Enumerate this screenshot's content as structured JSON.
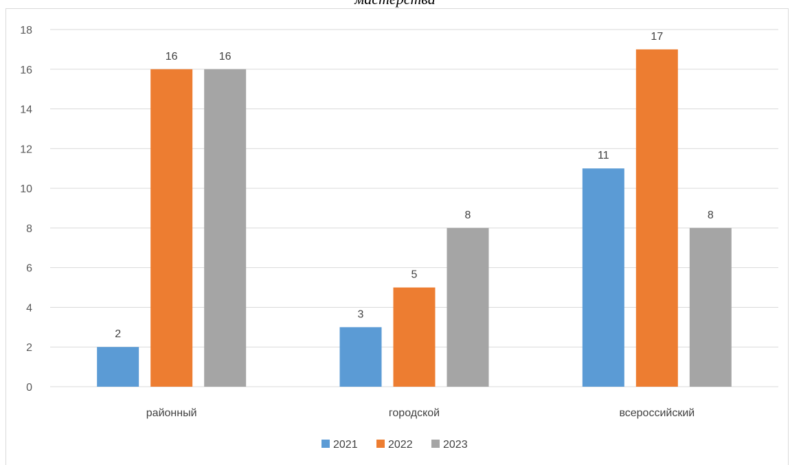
{
  "title": "мастерства",
  "chart_data": {
    "type": "bar",
    "categories": [
      "районный",
      "городской",
      "всероссийский"
    ],
    "series": [
      {
        "name": "2021",
        "values": [
          2,
          3,
          11
        ],
        "color": "#5b9bd5"
      },
      {
        "name": "2022",
        "values": [
          16,
          5,
          17
        ],
        "color": "#ed7d31"
      },
      {
        "name": "2023",
        "values": [
          16,
          8,
          8
        ],
        "color": "#a5a5a5"
      }
    ],
    "ylim": [
      0,
      18
    ],
    "yticks": [
      0,
      2,
      4,
      6,
      8,
      10,
      12,
      14,
      16,
      18
    ],
    "grid": true,
    "legend_position": "bottom"
  }
}
